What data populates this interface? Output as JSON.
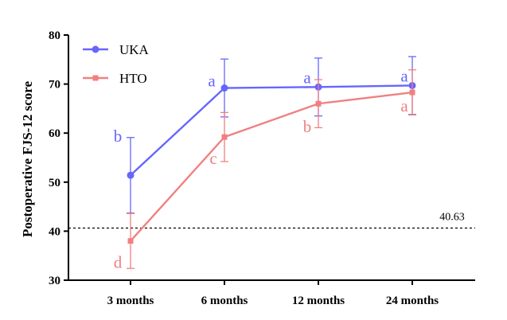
{
  "chart_data": {
    "type": "line",
    "title": "",
    "xlabel": "",
    "ylabel": "Postoperative FJS-12 score",
    "categories": [
      "3 months",
      "6 months",
      "12 months",
      "24 months"
    ],
    "ylim": [
      30,
      80
    ],
    "yticks": [
      30,
      40,
      50,
      60,
      70,
      80
    ],
    "legend_position": "top-left",
    "grid": false,
    "series": [
      {
        "name": "UKA",
        "color": "#6666ff",
        "marker": "circle",
        "values": [
          51.4,
          69.2,
          69.4,
          69.7
        ],
        "error": [
          7.7,
          5.9,
          5.9,
          5.9
        ],
        "letters": [
          "b",
          "a",
          "a",
          "a"
        ]
      },
      {
        "name": "HTO",
        "color": "#f08080",
        "marker": "square",
        "values": [
          38.0,
          59.2,
          66.0,
          68.3
        ],
        "error": [
          5.6,
          5.0,
          4.9,
          4.6
        ],
        "letters": [
          "d",
          "c",
          "b",
          "a"
        ]
      }
    ],
    "reference_line": {
      "value": 40.63,
      "label": "40.63",
      "style": "dashed",
      "color": "#000000"
    }
  }
}
